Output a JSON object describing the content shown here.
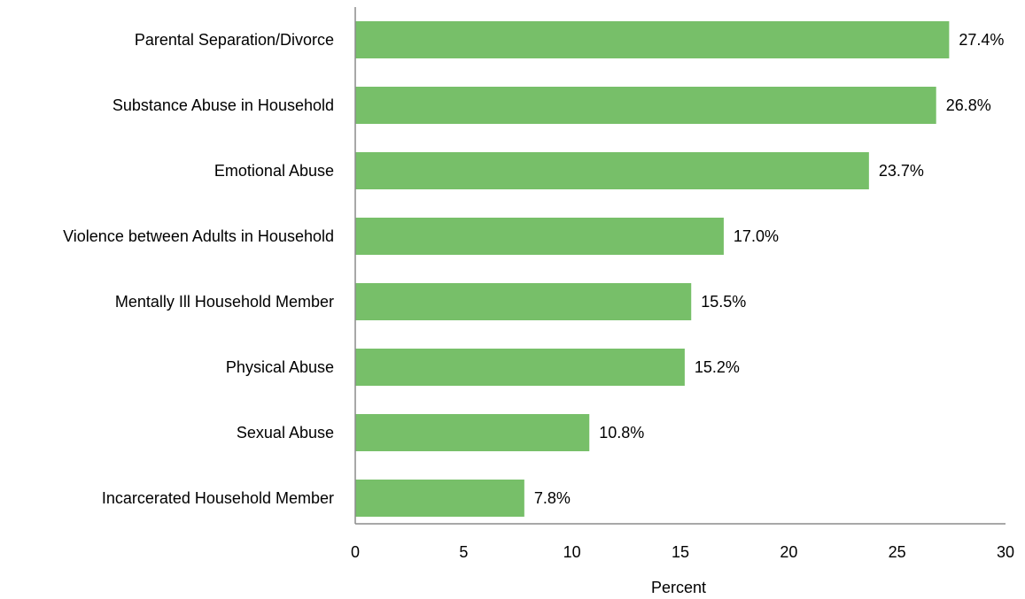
{
  "chart_data": {
    "type": "bar",
    "orientation": "horizontal",
    "categories": [
      "Parental Separation/Divorce",
      "Substance Abuse in Household",
      "Emotional Abuse",
      "Violence between Adults in Household",
      "Mentally Ill Household Member",
      "Physical Abuse",
      "Sexual Abuse",
      "Incarcerated Household Member"
    ],
    "values": [
      27.4,
      26.8,
      23.7,
      17.0,
      15.5,
      15.2,
      10.8,
      7.8
    ],
    "value_labels": [
      "27.4%",
      "26.8%",
      "23.7%",
      "17.0%",
      "15.5%",
      "15.2%",
      "10.8%",
      "7.8%"
    ],
    "xlabel": "Percent",
    "ylabel": "",
    "xlim": [
      0,
      30
    ],
    "xticks": [
      0,
      5,
      10,
      15,
      20,
      25,
      30
    ],
    "grid": false,
    "bar_color": "#77bf69",
    "axis_color": "#8c8c8c"
  }
}
